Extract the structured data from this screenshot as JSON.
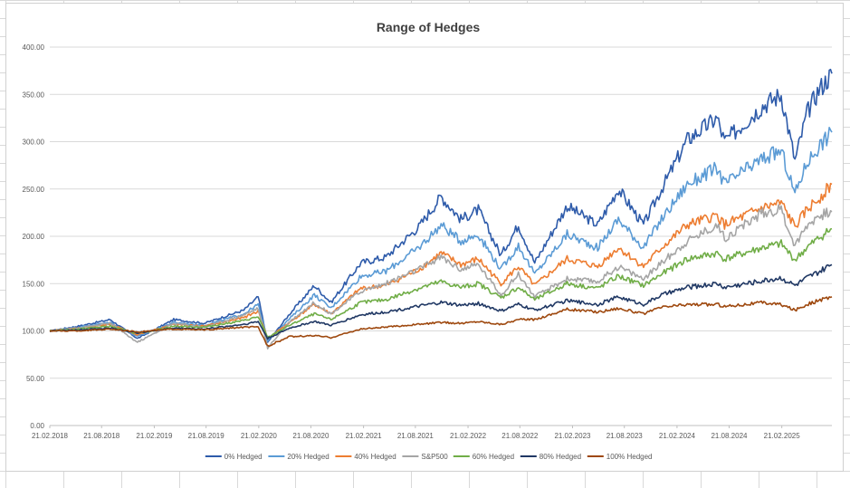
{
  "chart_data": {
    "type": "line",
    "title": "Range of Hedges",
    "xlabel": "",
    "ylabel": "",
    "ylim": [
      0,
      400
    ],
    "y_ticks": [
      "0.00",
      "50.00",
      "100.00",
      "150.00",
      "200.00",
      "250.00",
      "300.00",
      "350.00",
      "400.00"
    ],
    "x_ticks": [
      "21.02.2018",
      "21.08.2018",
      "21.02.2019",
      "21.08.2019",
      "21.02.2020",
      "21.08.2020",
      "21.02.2021",
      "21.08.2021",
      "21.02.2022",
      "21.08.2022",
      "21.02.2023",
      "21.08.2023",
      "21.02.2024",
      "21.08.2024",
      "21.02.2025"
    ],
    "x_range": [
      "2018-02-21",
      "2025-08-15"
    ],
    "grid": "horizontal",
    "legend_position": "bottom",
    "series": [
      {
        "name": "0% Hedged",
        "color": "#2E5BAA",
        "points": [
          [
            "2018-02-21",
            100
          ],
          [
            "2018-06-01",
            105
          ],
          [
            "2018-09-20",
            112
          ],
          [
            "2018-12-24",
            92
          ],
          [
            "2019-04-30",
            112
          ],
          [
            "2019-08-15",
            108
          ],
          [
            "2019-12-31",
            122
          ],
          [
            "2020-02-19",
            136
          ],
          [
            "2020-03-23",
            88
          ],
          [
            "2020-06-08",
            118
          ],
          [
            "2020-09-02",
            148
          ],
          [
            "2020-10-30",
            130
          ],
          [
            "2021-02-12",
            172
          ],
          [
            "2021-05-10",
            178
          ],
          [
            "2021-09-02",
            210
          ],
          [
            "2021-11-19",
            242
          ],
          [
            "2022-01-27",
            218
          ],
          [
            "2022-03-29",
            228
          ],
          [
            "2022-06-16",
            180
          ],
          [
            "2022-08-16",
            212
          ],
          [
            "2022-10-12",
            172
          ],
          [
            "2023-02-02",
            232
          ],
          [
            "2023-05-20",
            212
          ],
          [
            "2023-07-31",
            250
          ],
          [
            "2023-10-27",
            212
          ],
          [
            "2023-12-29",
            250
          ],
          [
            "2024-03-28",
            302
          ],
          [
            "2024-07-10",
            325
          ],
          [
            "2024-08-05",
            300
          ],
          [
            "2024-12-16",
            338
          ],
          [
            "2025-02-19",
            350
          ],
          [
            "2025-04-08",
            280
          ],
          [
            "2025-05-20",
            330
          ],
          [
            "2025-06-30",
            355
          ],
          [
            "2025-08-15",
            372
          ]
        ]
      },
      {
        "name": "20% Hedged",
        "color": "#5B9BD5",
        "points": [
          [
            "2018-02-21",
            100
          ],
          [
            "2018-06-01",
            104
          ],
          [
            "2018-09-20",
            109
          ],
          [
            "2018-12-24",
            94
          ],
          [
            "2019-04-30",
            109
          ],
          [
            "2019-08-15",
            106
          ],
          [
            "2019-12-31",
            118
          ],
          [
            "2020-02-19",
            128
          ],
          [
            "2020-03-23",
            90
          ],
          [
            "2020-06-08",
            113
          ],
          [
            "2020-09-02",
            138
          ],
          [
            "2020-10-30",
            124
          ],
          [
            "2021-02-12",
            158
          ],
          [
            "2021-05-10",
            163
          ],
          [
            "2021-09-02",
            188
          ],
          [
            "2021-11-19",
            212
          ],
          [
            "2022-01-27",
            195
          ],
          [
            "2022-03-29",
            202
          ],
          [
            "2022-06-16",
            165
          ],
          [
            "2022-08-16",
            190
          ],
          [
            "2022-10-12",
            160
          ],
          [
            "2023-02-02",
            202
          ],
          [
            "2023-05-20",
            188
          ],
          [
            "2023-07-31",
            218
          ],
          [
            "2023-10-27",
            188
          ],
          [
            "2023-12-29",
            218
          ],
          [
            "2024-03-28",
            255
          ],
          [
            "2024-07-10",
            272
          ],
          [
            "2024-08-05",
            255
          ],
          [
            "2024-12-16",
            282
          ],
          [
            "2025-02-19",
            290
          ],
          [
            "2025-04-08",
            245
          ],
          [
            "2025-05-20",
            278
          ],
          [
            "2025-06-30",
            295
          ],
          [
            "2025-08-15",
            310
          ]
        ]
      },
      {
        "name": "40% Hedged",
        "color": "#ED7D31",
        "points": [
          [
            "2018-02-21",
            100
          ],
          [
            "2018-06-01",
            103
          ],
          [
            "2018-09-20",
            107
          ],
          [
            "2018-12-24",
            96
          ],
          [
            "2019-04-30",
            107
          ],
          [
            "2019-08-15",
            105
          ],
          [
            "2019-12-31",
            114
          ],
          [
            "2020-02-19",
            121
          ],
          [
            "2020-03-23",
            92
          ],
          [
            "2020-06-08",
            109
          ],
          [
            "2020-09-02",
            128
          ],
          [
            "2020-10-30",
            118
          ],
          [
            "2021-02-12",
            145
          ],
          [
            "2021-05-10",
            148
          ],
          [
            "2021-09-02",
            165
          ],
          [
            "2021-11-19",
            182
          ],
          [
            "2022-01-27",
            170
          ],
          [
            "2022-03-29",
            176
          ],
          [
            "2022-06-16",
            150
          ],
          [
            "2022-08-16",
            168
          ],
          [
            "2022-10-12",
            148
          ],
          [
            "2023-02-02",
            176
          ],
          [
            "2023-05-20",
            168
          ],
          [
            "2023-07-31",
            188
          ],
          [
            "2023-10-27",
            168
          ],
          [
            "2023-12-29",
            188
          ],
          [
            "2024-03-28",
            212
          ],
          [
            "2024-07-10",
            222
          ],
          [
            "2024-08-05",
            212
          ],
          [
            "2024-12-16",
            230
          ],
          [
            "2025-02-19",
            235
          ],
          [
            "2025-04-08",
            210
          ],
          [
            "2025-05-20",
            228
          ],
          [
            "2025-06-30",
            240
          ],
          [
            "2025-08-15",
            255
          ]
        ]
      },
      {
        "name": "S&P500",
        "color": "#A5A5A5",
        "points": [
          [
            "2018-02-21",
            100
          ],
          [
            "2018-06-01",
            103
          ],
          [
            "2018-09-20",
            108
          ],
          [
            "2018-12-24",
            88
          ],
          [
            "2019-04-30",
            108
          ],
          [
            "2019-08-15",
            104
          ],
          [
            "2019-12-31",
            117
          ],
          [
            "2020-02-19",
            124
          ],
          [
            "2020-03-23",
            82
          ],
          [
            "2020-06-08",
            110
          ],
          [
            "2020-09-02",
            130
          ],
          [
            "2020-10-30",
            118
          ],
          [
            "2021-02-12",
            142
          ],
          [
            "2021-05-10",
            150
          ],
          [
            "2021-09-02",
            165
          ],
          [
            "2021-11-19",
            178
          ],
          [
            "2022-01-27",
            165
          ],
          [
            "2022-03-29",
            170
          ],
          [
            "2022-06-16",
            138
          ],
          [
            "2022-08-16",
            160
          ],
          [
            "2022-10-12",
            136
          ],
          [
            "2023-02-02",
            155
          ],
          [
            "2023-05-20",
            152
          ],
          [
            "2023-07-31",
            168
          ],
          [
            "2023-10-27",
            155
          ],
          [
            "2023-12-29",
            172
          ],
          [
            "2024-03-28",
            195
          ],
          [
            "2024-07-10",
            212
          ],
          [
            "2024-08-05",
            198
          ],
          [
            "2024-12-16",
            225
          ],
          [
            "2025-02-19",
            228
          ],
          [
            "2025-04-08",
            190
          ],
          [
            "2025-05-20",
            212
          ],
          [
            "2025-06-30",
            222
          ],
          [
            "2025-08-15",
            226
          ]
        ]
      },
      {
        "name": "60% Hedged",
        "color": "#70AD47",
        "points": [
          [
            "2018-02-21",
            100
          ],
          [
            "2018-06-01",
            102
          ],
          [
            "2018-09-20",
            105
          ],
          [
            "2018-12-24",
            97
          ],
          [
            "2019-04-30",
            105
          ],
          [
            "2019-08-15",
            104
          ],
          [
            "2019-12-31",
            111
          ],
          [
            "2020-02-19",
            115
          ],
          [
            "2020-03-23",
            93
          ],
          [
            "2020-06-08",
            106
          ],
          [
            "2020-09-02",
            118
          ],
          [
            "2020-10-30",
            112
          ],
          [
            "2021-02-12",
            130
          ],
          [
            "2021-05-10",
            133
          ],
          [
            "2021-09-02",
            145
          ],
          [
            "2021-11-19",
            152
          ],
          [
            "2022-01-27",
            146
          ],
          [
            "2022-03-29",
            150
          ],
          [
            "2022-06-16",
            135
          ],
          [
            "2022-08-16",
            146
          ],
          [
            "2022-10-12",
            133
          ],
          [
            "2023-02-02",
            150
          ],
          [
            "2023-05-20",
            145
          ],
          [
            "2023-07-31",
            158
          ],
          [
            "2023-10-27",
            148
          ],
          [
            "2023-12-29",
            160
          ],
          [
            "2024-03-28",
            176
          ],
          [
            "2024-07-10",
            182
          ],
          [
            "2024-08-05",
            176
          ],
          [
            "2024-12-16",
            188
          ],
          [
            "2025-02-19",
            192
          ],
          [
            "2025-04-08",
            175
          ],
          [
            "2025-05-20",
            188
          ],
          [
            "2025-06-30",
            198
          ],
          [
            "2025-08-15",
            208
          ]
        ]
      },
      {
        "name": "80% Hedged",
        "color": "#203864",
        "points": [
          [
            "2018-02-21",
            100
          ],
          [
            "2018-06-01",
            101
          ],
          [
            "2018-09-20",
            103
          ],
          [
            "2018-12-24",
            98
          ],
          [
            "2019-04-30",
            103
          ],
          [
            "2019-08-15",
            102
          ],
          [
            "2019-12-31",
            107
          ],
          [
            "2020-02-19",
            110
          ],
          [
            "2020-03-23",
            92
          ],
          [
            "2020-06-08",
            103
          ],
          [
            "2020-09-02",
            110
          ],
          [
            "2020-10-30",
            106
          ],
          [
            "2021-02-12",
            117
          ],
          [
            "2021-05-10",
            120
          ],
          [
            "2021-09-02",
            126
          ],
          [
            "2021-11-19",
            130
          ],
          [
            "2022-01-27",
            127
          ],
          [
            "2022-03-29",
            129
          ],
          [
            "2022-06-16",
            121
          ],
          [
            "2022-08-16",
            128
          ],
          [
            "2022-10-12",
            122
          ],
          [
            "2023-02-02",
            132
          ],
          [
            "2023-05-20",
            128
          ],
          [
            "2023-07-31",
            136
          ],
          [
            "2023-10-27",
            128
          ],
          [
            "2023-12-29",
            138
          ],
          [
            "2024-03-28",
            146
          ],
          [
            "2024-07-10",
            150
          ],
          [
            "2024-08-05",
            146
          ],
          [
            "2024-12-16",
            153
          ],
          [
            "2025-02-19",
            156
          ],
          [
            "2025-04-08",
            148
          ],
          [
            "2025-05-20",
            156
          ],
          [
            "2025-06-30",
            162
          ],
          [
            "2025-08-15",
            170
          ]
        ]
      },
      {
        "name": "100% Hedged",
        "color": "#9E480E",
        "points": [
          [
            "2018-02-21",
            100
          ],
          [
            "2018-06-01",
            100
          ],
          [
            "2018-09-20",
            102
          ],
          [
            "2018-12-24",
            99
          ],
          [
            "2019-04-30",
            102
          ],
          [
            "2019-08-15",
            101
          ],
          [
            "2019-12-31",
            104
          ],
          [
            "2020-02-19",
            104
          ],
          [
            "2020-03-23",
            84
          ],
          [
            "2020-06-08",
            94
          ],
          [
            "2020-09-02",
            95
          ],
          [
            "2020-10-30",
            93
          ],
          [
            "2021-02-12",
            102
          ],
          [
            "2021-05-10",
            104
          ],
          [
            "2021-09-02",
            107
          ],
          [
            "2021-11-19",
            109
          ],
          [
            "2022-01-27",
            108
          ],
          [
            "2022-03-29",
            110
          ],
          [
            "2022-06-16",
            107
          ],
          [
            "2022-08-16",
            112
          ],
          [
            "2022-10-12",
            112
          ],
          [
            "2023-02-02",
            123
          ],
          [
            "2023-05-20",
            120
          ],
          [
            "2023-07-31",
            124
          ],
          [
            "2023-10-27",
            118
          ],
          [
            "2023-12-29",
            125
          ],
          [
            "2024-03-28",
            128
          ],
          [
            "2024-07-10",
            128
          ],
          [
            "2024-08-05",
            126
          ],
          [
            "2024-12-16",
            130
          ],
          [
            "2025-02-19",
            128
          ],
          [
            "2025-04-08",
            122
          ],
          [
            "2025-05-20",
            128
          ],
          [
            "2025-06-30",
            132
          ],
          [
            "2025-08-15",
            136
          ]
        ]
      }
    ]
  }
}
